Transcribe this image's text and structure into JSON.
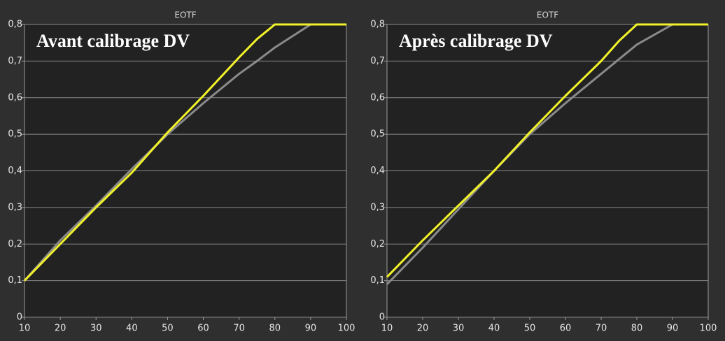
{
  "chart_data": [
    {
      "type": "line",
      "title": "EOTF",
      "annotation": "Avant calibrage DV",
      "x": [
        10,
        20,
        30,
        40,
        50,
        60,
        70,
        75,
        80,
        90,
        100
      ],
      "series": [
        {
          "color": "#8a8a8a",
          "values": [
            0.1,
            0.21,
            0.305,
            0.405,
            0.5,
            0.585,
            0.665,
            0.7,
            0.737,
            0.8,
            0.8
          ]
        },
        {
          "color": "#f2f22a",
          "values": [
            0.1,
            0.2,
            0.3,
            0.395,
            0.505,
            0.605,
            0.71,
            0.76,
            0.8,
            0.8,
            0.8
          ]
        }
      ],
      "xlim": [
        10,
        100
      ],
      "xticks": [
        10,
        20,
        30,
        40,
        50,
        60,
        70,
        80,
        90,
        100
      ],
      "ylim": [
        0,
        0.8
      ],
      "yticks": [
        0,
        {
          "value": 0.1,
          "label": "0,1"
        },
        {
          "value": 0.2,
          "label": "0,2"
        },
        {
          "value": 0.3,
          "label": "0,3"
        },
        {
          "value": 0.4,
          "label": "0,4"
        },
        {
          "value": 0.5,
          "label": "0,5"
        },
        {
          "value": 0.6,
          "label": "0,6"
        },
        {
          "value": 0.7,
          "label": "0,7"
        },
        {
          "value": 0.8,
          "label": "0,8"
        }
      ],
      "grid": true
    },
    {
      "type": "line",
      "title": "EOTF",
      "annotation": "Après calibrage DV",
      "x": [
        10,
        20,
        30,
        40,
        50,
        60,
        70,
        75,
        80,
        90,
        100
      ],
      "series": [
        {
          "color": "#8a8a8a",
          "values": [
            0.09,
            0.19,
            0.295,
            0.4,
            0.5,
            0.585,
            0.665,
            0.705,
            0.745,
            0.8,
            0.8
          ]
        },
        {
          "color": "#f2f22a",
          "values": [
            0.11,
            0.21,
            0.305,
            0.4,
            0.505,
            0.605,
            0.7,
            0.755,
            0.8,
            0.8,
            0.8
          ]
        }
      ],
      "xlim": [
        10,
        100
      ],
      "xticks": [
        10,
        20,
        30,
        40,
        50,
        60,
        70,
        80,
        90,
        100
      ],
      "ylim": [
        0,
        0.8
      ],
      "yticks": [
        0,
        {
          "value": 0.1,
          "label": "0,1"
        },
        {
          "value": 0.2,
          "label": "0,2"
        },
        {
          "value": 0.3,
          "label": "0,3"
        },
        {
          "value": 0.4,
          "label": "0,4"
        },
        {
          "value": 0.5,
          "label": "0,5"
        },
        {
          "value": 0.6,
          "label": "0,6"
        },
        {
          "value": 0.7,
          "label": "0,7"
        },
        {
          "value": 0.8,
          "label": "0,8"
        }
      ],
      "grid": true
    }
  ]
}
